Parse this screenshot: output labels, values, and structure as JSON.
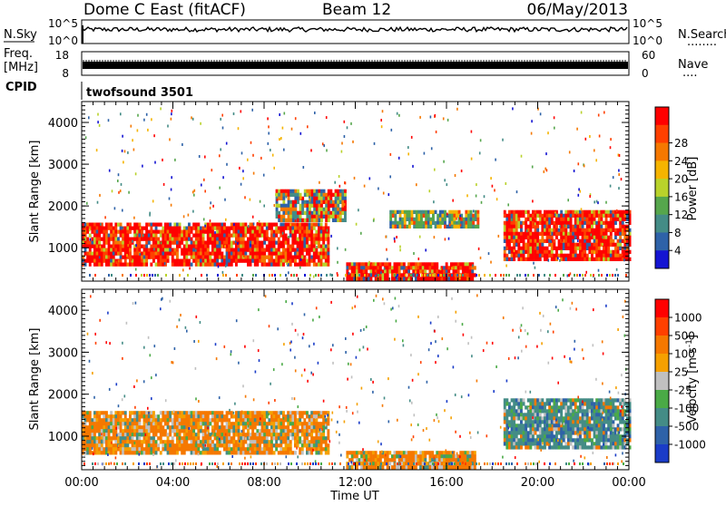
{
  "header": {
    "station": "Dome C East (fitACF)",
    "beam": "Beam 12",
    "date": "06/May/2013"
  },
  "left_labels": {
    "nsky": "N.Sky",
    "freq_line1": "Freq.",
    "freq_line2": "[MHz]",
    "cpid": "CPID"
  },
  "right_labels": {
    "nsearch": "N.Search",
    "nsearch_dots": "........",
    "nave": "Nave",
    "nave_dots": "...."
  },
  "noise_panel": {
    "left_ticks": [
      "10^5",
      "10^0"
    ],
    "right_ticks": [
      "10^5",
      "10^0"
    ]
  },
  "freq_panel": {
    "left_ticks": [
      "18",
      "8"
    ],
    "right_ticks": [
      "60",
      "0"
    ]
  },
  "cpid_text": "twofsound 3501",
  "chart_data": [
    {
      "type": "heatmap",
      "name": "power",
      "ylabel": "Slant Range [km]",
      "yticks": [
        "1000",
        "2000",
        "3000",
        "4000"
      ],
      "xlim": [
        "00:00",
        "24:00"
      ],
      "ylim": [
        200,
        4500
      ],
      "colorbar_label": "Power [dB]",
      "colorbar_ticks": [
        "4",
        "8",
        "12",
        "16",
        "20",
        "24",
        "28"
      ],
      "colors": [
        "#1414d2",
        "#2e62a8",
        "#448c86",
        "#56a64c",
        "#b9d22b",
        "#f5b400",
        "#f57800",
        "#ff4000",
        "#ff0000"
      ],
      "regions": [
        {
          "t0": 0.0,
          "t1": 10.8,
          "r0": 600,
          "r1": 1600,
          "level": "high"
        },
        {
          "t0": 8.5,
          "t1": 11.6,
          "r0": 1700,
          "r1": 2400,
          "level": "mixed"
        },
        {
          "t0": 11.6,
          "t1": 17.2,
          "r0": 250,
          "r1": 650,
          "level": "high"
        },
        {
          "t0": 13.5,
          "t1": 17.4,
          "r0": 1500,
          "r1": 1900,
          "level": "mid"
        },
        {
          "t0": 18.5,
          "t1": 24.0,
          "r0": 700,
          "r1": 1900,
          "level": "high"
        }
      ]
    },
    {
      "type": "heatmap",
      "name": "velocity",
      "ylabel": "Slant Range [km]",
      "yticks": [
        "1000",
        "2000",
        "3000",
        "4000"
      ],
      "xlim": [
        "00:00",
        "24:00"
      ],
      "ylim": [
        200,
        4500
      ],
      "colorbar_label": "Velocity [m s",
      "colorbar_sup": "-1",
      "colorbar_label_end": "]",
      "colorbar_ticks": [
        "1000",
        "500",
        "100",
        "25",
        "-25",
        "-100",
        "-500",
        "-1000"
      ],
      "colors": [
        "#1a3cc8",
        "#2e62a8",
        "#448c86",
        "#4aaa46",
        "#c0c0c0",
        "#f5a000",
        "#f57800",
        "#ff4000",
        "#ff0000"
      ],
      "regions": [
        {
          "t0": 0.0,
          "t1": 10.8,
          "r0": 600,
          "r1": 1600,
          "level": "negative"
        },
        {
          "t0": 11.6,
          "t1": 17.2,
          "r0": 250,
          "r1": 650,
          "level": "negative"
        },
        {
          "t0": 18.5,
          "t1": 24.0,
          "r0": 700,
          "r1": 1900,
          "level": "positive"
        }
      ]
    }
  ],
  "time_axis": {
    "ticks": [
      "00:00",
      "04:00",
      "08:00",
      "12:00",
      "16:00",
      "20:00",
      "00:00"
    ],
    "label": "Time UT"
  }
}
